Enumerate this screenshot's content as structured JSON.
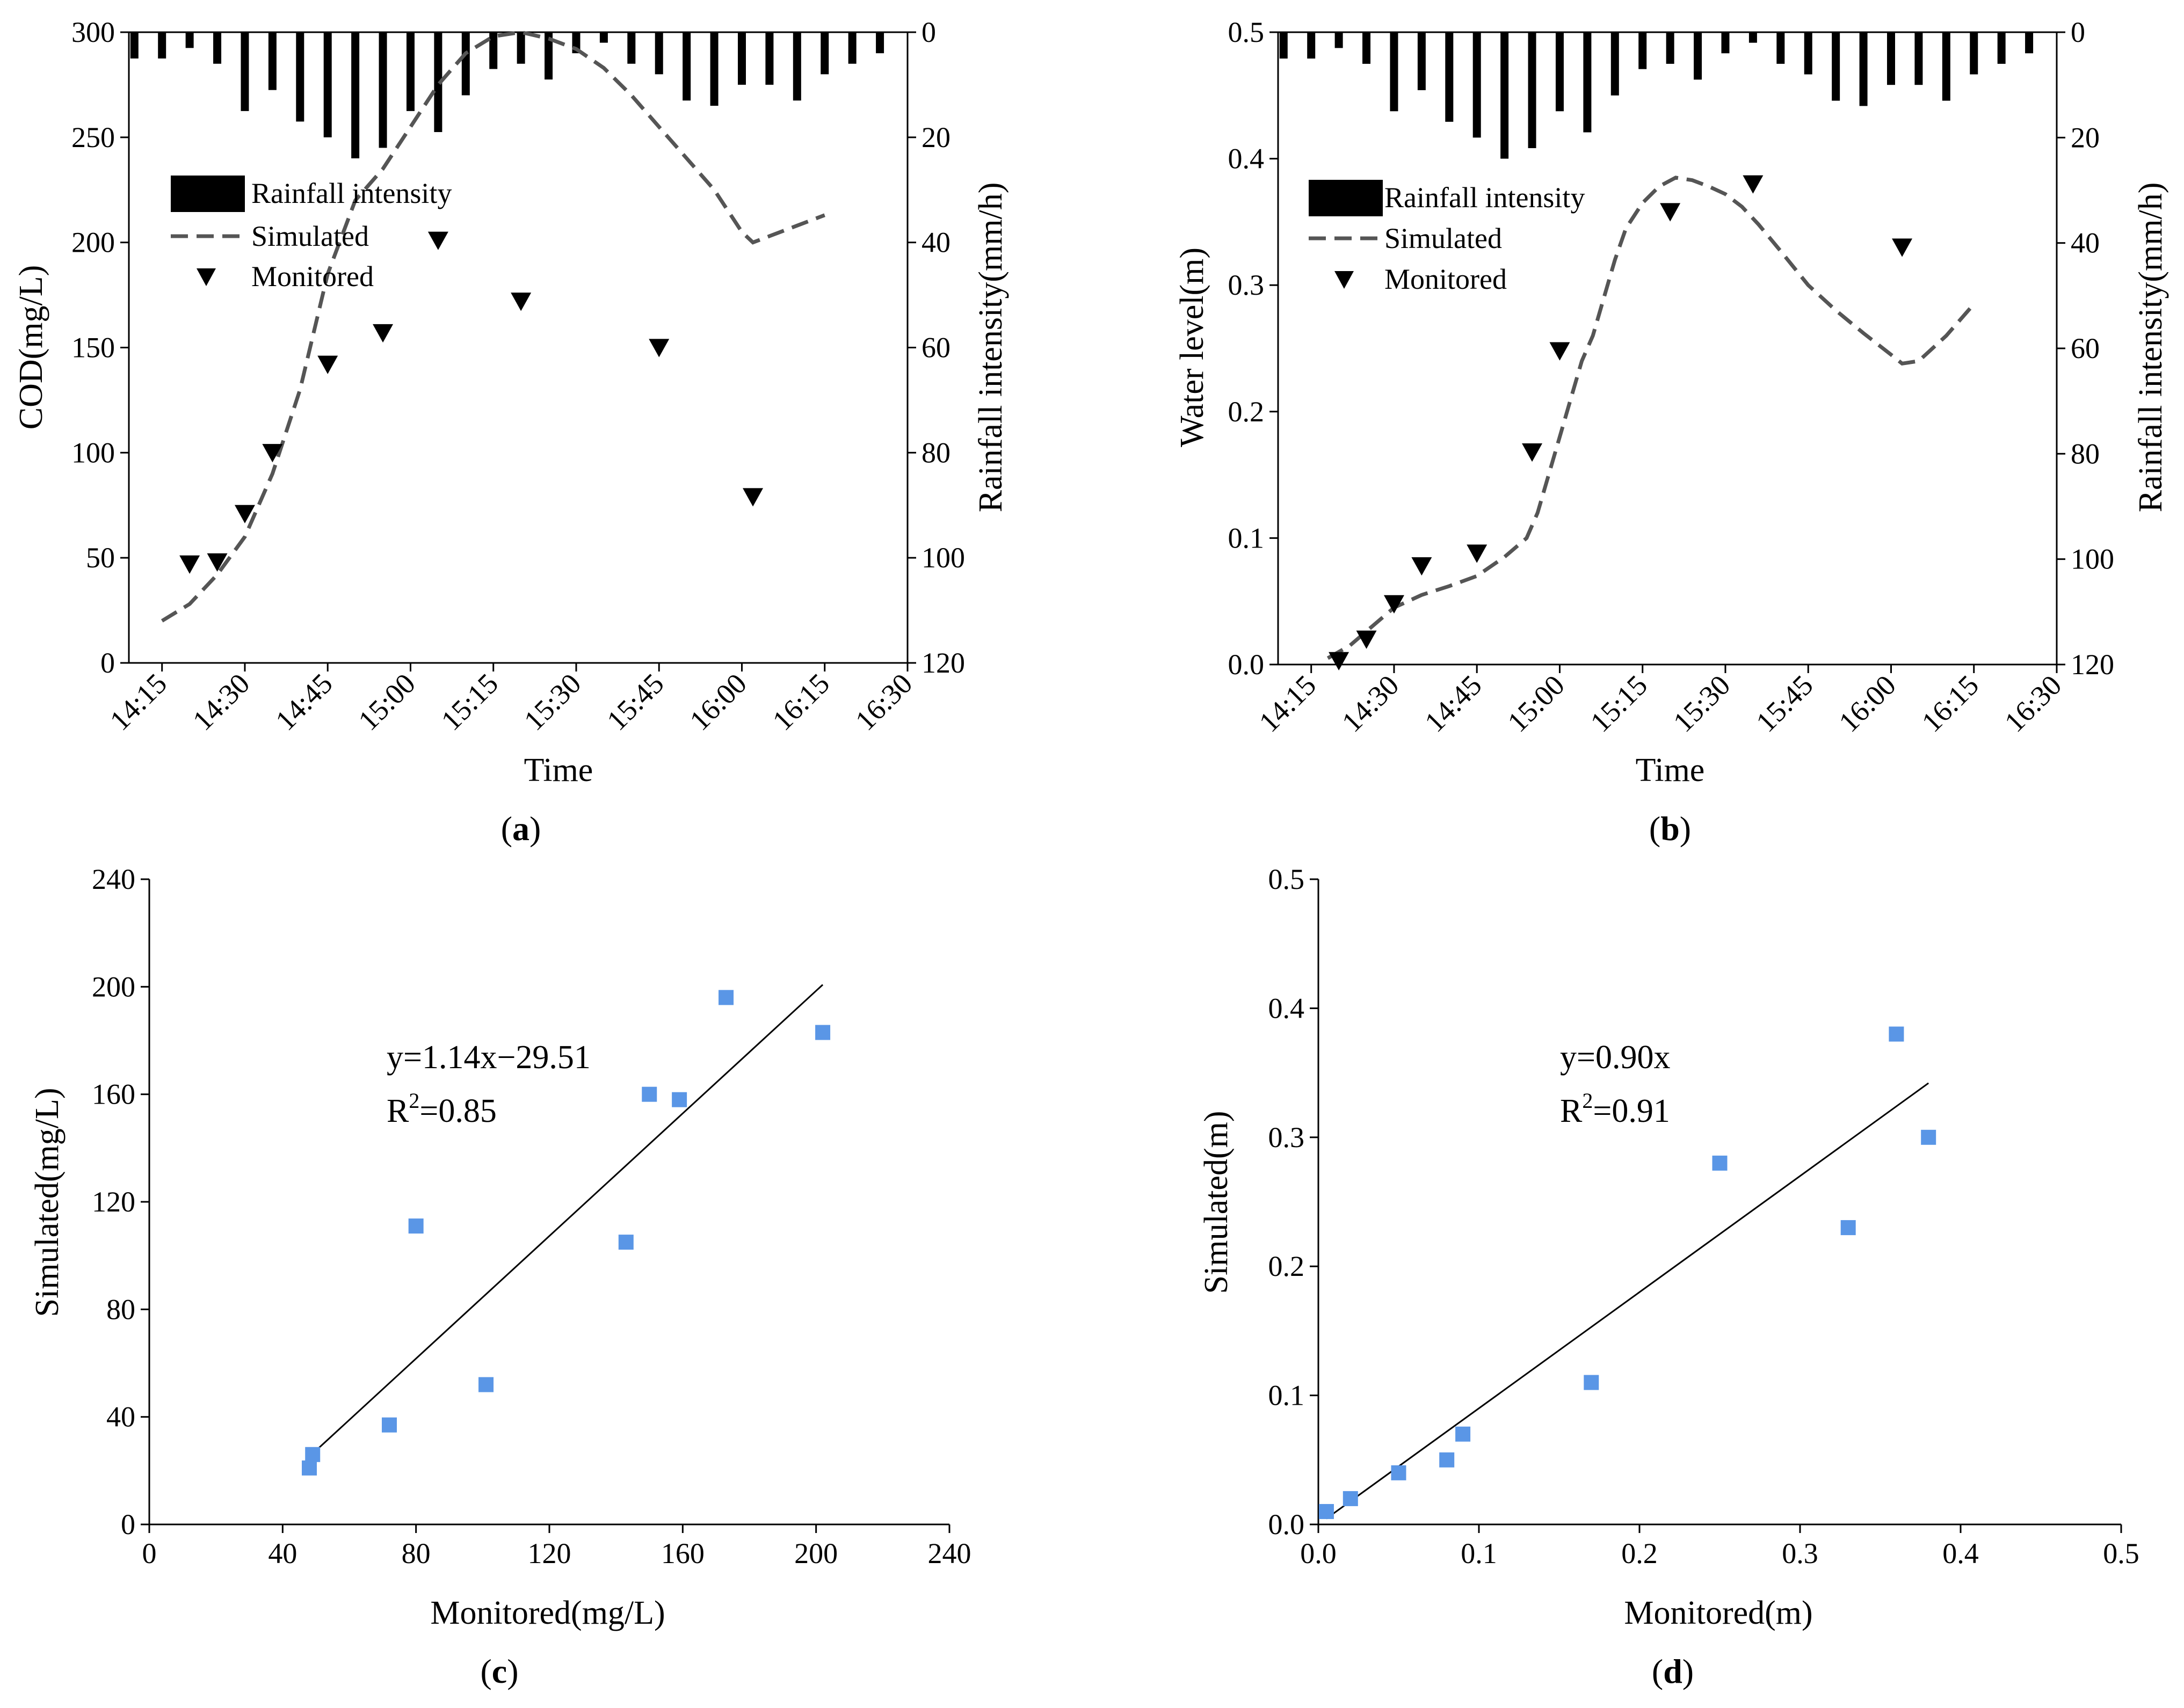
{
  "chart_data": [
    {
      "id": "a",
      "type": "line",
      "caption": "(a)",
      "caption_letter": "a",
      "xlabel": "Time",
      "ylabel": "COD(mg/L)",
      "y2label": "Rainfall intensity(mm/h)",
      "x_ticks": [
        "14:15",
        "14:30",
        "14:45",
        "15:00",
        "15:15",
        "15:30",
        "15:45",
        "16:00",
        "16:15",
        "16:30"
      ],
      "x_tick_minutes": [
        855,
        870,
        885,
        900,
        915,
        930,
        945,
        960,
        975,
        990
      ],
      "xlim_minutes": [
        849,
        990
      ],
      "ylim": [
        0,
        300
      ],
      "y_ticks": [
        0,
        50,
        100,
        150,
        200,
        250,
        300
      ],
      "y2lim": [
        0,
        120
      ],
      "y2_reversed": true,
      "y2_ticks": [
        0,
        20,
        40,
        60,
        80,
        100,
        120
      ],
      "legend": {
        "rainfall": "Rainfall intensity",
        "simulated": "Simulated",
        "monitored": "Monitored"
      },
      "rainfall": {
        "x_minutes": [
          850,
          855,
          860,
          865,
          870,
          875,
          880,
          885,
          890,
          895,
          900,
          905,
          910,
          915,
          920,
          925,
          930,
          935,
          940,
          945,
          950,
          955,
          960,
          965,
          970,
          975,
          980,
          985
        ],
        "values": [
          5,
          5,
          3,
          6,
          15,
          11,
          17,
          20,
          24,
          22,
          15,
          19,
          12,
          7,
          6,
          9,
          4,
          2,
          6,
          8,
          13,
          14,
          10,
          10,
          13,
          8,
          6,
          4
        ]
      },
      "series": [
        {
          "name": "Simulated",
          "x_minutes": [
            855,
            860,
            865,
            870,
            875,
            880,
            885,
            890,
            895,
            900,
            905,
            910,
            915,
            920,
            925,
            930,
            935,
            940,
            945,
            950,
            955,
            960,
            962,
            965,
            970,
            975
          ],
          "values": [
            20,
            28,
            42,
            60,
            90,
            130,
            185,
            220,
            235,
            255,
            275,
            290,
            298,
            300,
            297,
            292,
            283,
            270,
            255,
            240,
            225,
            205,
            200,
            203,
            208,
            213
          ]
        },
        {
          "name": "Monitored",
          "x_minutes": [
            860,
            865,
            870,
            875,
            885,
            895,
            905,
            920,
            945,
            962
          ],
          "values": [
            47,
            48,
            71,
            100,
            142,
            157,
            201,
            172,
            150,
            79
          ]
        }
      ]
    },
    {
      "id": "b",
      "type": "line",
      "caption": "(b)",
      "caption_letter": "b",
      "xlabel": "Time",
      "ylabel": "Water level(m)",
      "y2label": "Rainfall intensity(mm/h)",
      "x_ticks": [
        "14:15",
        "14:30",
        "14:45",
        "15:00",
        "15:15",
        "15:30",
        "15:45",
        "16:00",
        "16:15",
        "16:30"
      ],
      "x_tick_minutes": [
        855,
        870,
        885,
        900,
        915,
        930,
        945,
        960,
        975,
        990
      ],
      "xlim_minutes": [
        849,
        990
      ],
      "ylim": [
        0,
        0.5
      ],
      "y_ticks": [
        "0.0",
        "0.1",
        "0.2",
        "0.3",
        "0.4",
        "0.5"
      ],
      "y2lim": [
        0,
        120
      ],
      "y2_reversed": true,
      "y2_ticks": [
        0,
        20,
        40,
        60,
        80,
        100,
        120
      ],
      "legend": {
        "rainfall": "Rainfall intensity",
        "simulated": "Simulated",
        "monitored": "Monitored"
      },
      "rainfall": {
        "x_minutes": [
          850,
          855,
          860,
          865,
          870,
          875,
          880,
          885,
          890,
          895,
          900,
          905,
          910,
          915,
          920,
          925,
          930,
          935,
          940,
          945,
          950,
          955,
          960,
          965,
          970,
          975,
          980,
          985
        ],
        "values": [
          5,
          5,
          3,
          6,
          15,
          11,
          17,
          20,
          24,
          22,
          15,
          19,
          12,
          7,
          6,
          9,
          4,
          2,
          6,
          8,
          13,
          14,
          10,
          10,
          13,
          8,
          6,
          4
        ]
      },
      "series": [
        {
          "name": "Simulated",
          "x_minutes": [
            858,
            862,
            866,
            870,
            875,
            880,
            885,
            890,
            894,
            896,
            898,
            900,
            902,
            904,
            906,
            908,
            910,
            912,
            915,
            918,
            921,
            924,
            927,
            930,
            933,
            936,
            940,
            945,
            950,
            955,
            960,
            962,
            965,
            970,
            975
          ],
          "values": [
            0.005,
            0.015,
            0.03,
            0.045,
            0.055,
            0.062,
            0.07,
            0.085,
            0.1,
            0.12,
            0.15,
            0.18,
            0.21,
            0.24,
            0.26,
            0.29,
            0.32,
            0.345,
            0.365,
            0.378,
            0.385,
            0.383,
            0.378,
            0.372,
            0.362,
            0.348,
            0.327,
            0.3,
            0.28,
            0.262,
            0.245,
            0.238,
            0.24,
            0.26,
            0.285
          ]
        },
        {
          "name": "Monitored",
          "x_minutes": [
            860,
            865,
            870,
            875,
            885,
            895,
            900,
            920,
            935,
            962
          ],
          "values": [
            0.003,
            0.02,
            0.048,
            0.078,
            0.088,
            0.168,
            0.248,
            0.358,
            0.38,
            0.33
          ]
        }
      ]
    },
    {
      "id": "c",
      "type": "scatter",
      "caption": "(c)",
      "caption_letter": "c",
      "xlabel": "Monitored(mg/L)",
      "ylabel": "Simulated(mg/L)",
      "xlim": [
        0,
        240
      ],
      "ylim": [
        0,
        240
      ],
      "x_ticks": [
        0,
        40,
        80,
        120,
        160,
        200,
        240
      ],
      "y_ticks": [
        0,
        40,
        80,
        120,
        160,
        200,
        240
      ],
      "points": {
        "x": [
          48,
          49,
          72,
          80,
          101,
          143,
          150,
          159,
          173,
          202
        ],
        "y": [
          21,
          26,
          37,
          111,
          52,
          105,
          160,
          158,
          196,
          183
        ]
      },
      "fit": {
        "equation": "y=1.14x−29.51",
        "r2_prefix": "R",
        "r2_sup": "2",
        "r2_value": "=0.85",
        "slope": 1.14,
        "intercept": -29.51,
        "x_range": [
          48,
          202
        ]
      },
      "point_color": "#5a96e6"
    },
    {
      "id": "d",
      "type": "scatter",
      "caption": "(d)",
      "caption_letter": "d",
      "xlabel": "Monitored(m)",
      "ylabel": "Simulated(m)",
      "xlim": [
        0,
        0.5
      ],
      "ylim": [
        0,
        0.5
      ],
      "x_ticks": [
        "0.0",
        "0.1",
        "0.2",
        "0.3",
        "0.4",
        "0.5"
      ],
      "y_ticks": [
        "0.0",
        "0.1",
        "0.2",
        "0.3",
        "0.4",
        "0.5"
      ],
      "points": {
        "x": [
          0.005,
          0.02,
          0.05,
          0.08,
          0.09,
          0.17,
          0.25,
          0.33,
          0.36,
          0.38
        ],
        "y": [
          0.01,
          0.02,
          0.04,
          0.05,
          0.07,
          0.11,
          0.28,
          0.23,
          0.38,
          0.3
        ]
      },
      "fit": {
        "equation": "y=0.90x",
        "r2_prefix": "R",
        "r2_sup": "2",
        "r2_value": "=0.91",
        "slope": 0.9,
        "intercept": 0,
        "x_range": [
          0.005,
          0.38
        ]
      },
      "point_color": "#5a96e6"
    }
  ]
}
